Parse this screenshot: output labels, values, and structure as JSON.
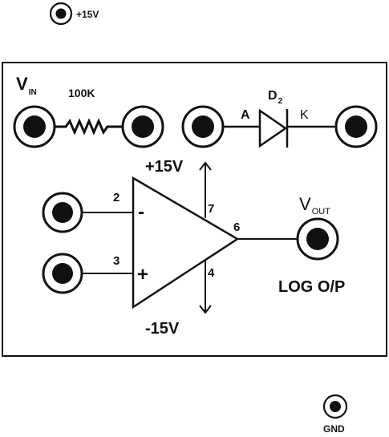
{
  "supply_jack": {
    "label": "+15V"
  },
  "ground_jack": {
    "label": "GND"
  },
  "panel": {
    "vin": {
      "main": "V",
      "sub": "IN"
    },
    "resistor": {
      "label": "100K"
    },
    "diode": {
      "name_main": "D",
      "name_sub": "2",
      "anode_label": "A",
      "cathode_label": "K"
    },
    "opamp": {
      "pin_inverting": "2",
      "pin_noninverting": "3",
      "pin_vplus": "7",
      "pin_vminus": "4",
      "pin_output": "6",
      "minus_sign": "-",
      "plus_sign": "+",
      "vplus_label": "+15V",
      "vminus_label": "-15V"
    },
    "vout": {
      "main": "V",
      "sub": "OUT"
    },
    "output_caption": "LOG O/P"
  }
}
